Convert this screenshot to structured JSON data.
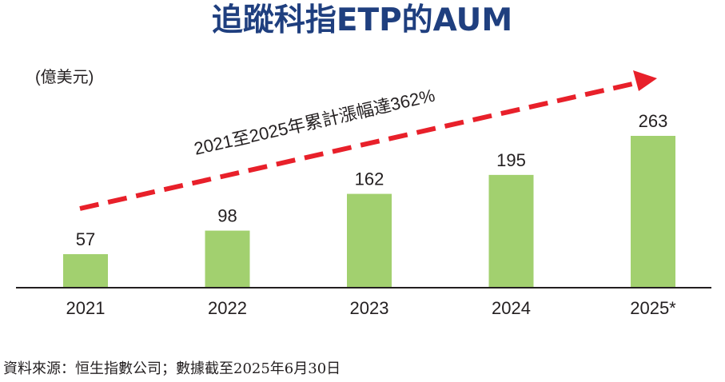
{
  "chart_data": {
    "type": "bar",
    "title": "追蹤科指ETP的AUM",
    "unit_label": "(億美元)",
    "categories": [
      "2021",
      "2022",
      "2023",
      "2024",
      "2025*"
    ],
    "values": [
      57,
      98,
      162,
      195,
      263
    ],
    "value_labels": [
      "57",
      "98",
      "162",
      "195",
      "263"
    ],
    "ylim": [
      0,
      300
    ],
    "grid": false,
    "legend": "none",
    "annotation": "2021至2025年累計漲幅達362%",
    "source": "資料來源：恒生指數公司；數據截至2025年6月30日",
    "colors": {
      "bar": "#a2d06f",
      "arrow": "#e8202a",
      "title": "#1f3f7f",
      "text": "#231f20",
      "axis": "#231f20"
    }
  }
}
